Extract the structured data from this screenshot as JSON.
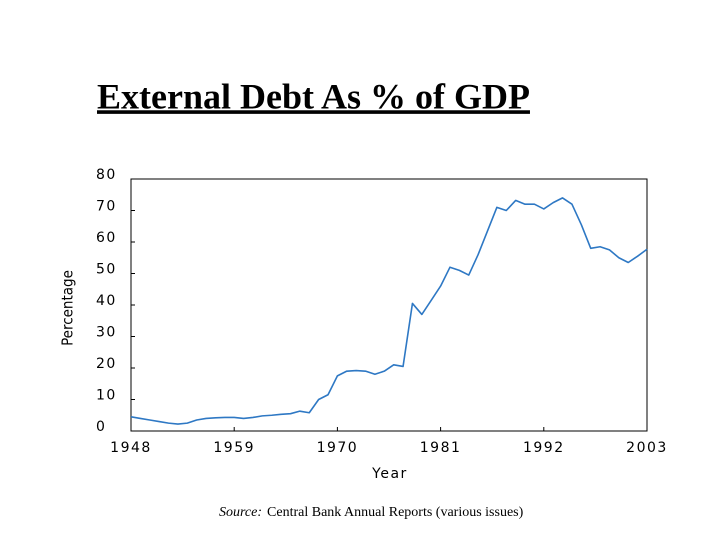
{
  "chart_data": {
    "type": "line",
    "title": "External Debt As % of GDP",
    "x_label": "Year",
    "y_label": "Percentage",
    "source_label": "Source:",
    "source": "Central Bank Annual Reports (various issues)",
    "color": "#2e78c4",
    "xlim": [
      1948,
      2003
    ],
    "xticks": [
      1948,
      1959,
      1970,
      1981,
      1992,
      2003
    ],
    "ylim": [
      0,
      80
    ],
    "yticks": [
      0,
      10,
      20,
      30,
      40,
      50,
      60,
      70,
      80
    ],
    "x": [
      1948,
      1949,
      1950,
      1951,
      1952,
      1953,
      1954,
      1955,
      1956,
      1957,
      1958,
      1959,
      1960,
      1961,
      1962,
      1963,
      1964,
      1965,
      1966,
      1967,
      1968,
      1969,
      1970,
      1971,
      1972,
      1973,
      1974,
      1975,
      1976,
      1977,
      1978,
      1979,
      1980,
      1981,
      1982,
      1983,
      1984,
      1985,
      1986,
      1987,
      1988,
      1989,
      1990,
      1991,
      1992,
      1993,
      1994,
      1995,
      1996,
      1997,
      1998,
      1999,
      2000,
      2001,
      2002,
      2003
    ],
    "values": [
      4.5,
      4,
      3.5,
      3,
      2.5,
      2.2,
      2.5,
      3.5,
      4,
      4.2,
      4.3,
      4.3,
      4,
      4.3,
      4.8,
      5,
      5.3,
      5.5,
      6.3,
      5.8,
      10,
      11.5,
      17.5,
      19,
      19.2,
      19,
      18,
      19,
      21,
      20.5,
      40.5,
      37,
      41.5,
      46,
      52,
      51,
      49.5,
      56,
      63.5,
      71,
      70,
      73.2,
      72,
      72,
      70.5,
      72.5,
      74,
      72,
      65.5,
      58,
      58.5,
      57.5,
      55,
      53.5,
      55.5,
      57.7
    ]
  }
}
